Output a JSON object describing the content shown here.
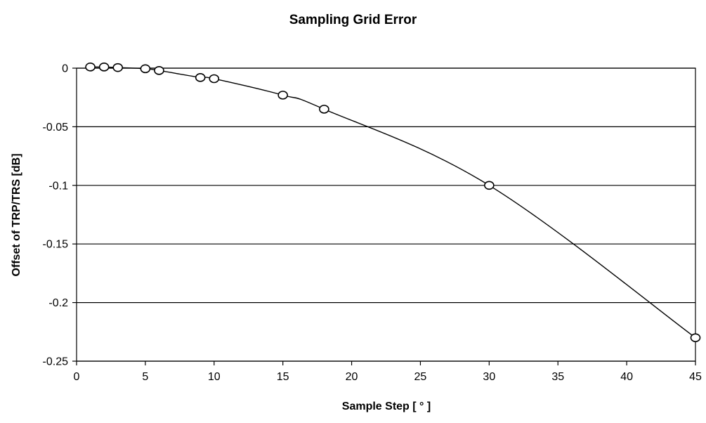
{
  "chart_data": {
    "type": "scatter",
    "title": "Sampling Grid Error",
    "xlabel": "Sample Step [ ° ]",
    "ylabel": "Offset of TRP/TRS [dB]",
    "xlim": [
      0,
      45
    ],
    "ylim": [
      -0.25,
      0
    ],
    "x_ticks": [
      0,
      5,
      10,
      15,
      20,
      25,
      30,
      35,
      40,
      45
    ],
    "y_ticks": [
      0,
      -0.05,
      -0.1,
      -0.15,
      -0.2,
      -0.25
    ],
    "x_tick_labels": [
      "0",
      "5",
      "10",
      "15",
      "20",
      "25",
      "30",
      "35",
      "40",
      "45"
    ],
    "y_tick_labels": [
      "0",
      "-0.05",
      "-0.1",
      "-0.15",
      "-0.2",
      "-0.25"
    ],
    "grid": "horizontal",
    "series": [
      {
        "marker": "circle",
        "line": "smooth",
        "x": [
          1,
          2,
          3,
          5,
          6,
          9,
          10,
          15,
          18,
          30,
          45
        ],
        "y": [
          0.001,
          0.001,
          0.0005,
          -0.0005,
          -0.002,
          -0.008,
          -0.009,
          -0.023,
          -0.035,
          -0.1,
          -0.23
        ]
      }
    ],
    "colors": {
      "line": "#000000",
      "marker": "#000000",
      "background": "#ffffff"
    }
  }
}
